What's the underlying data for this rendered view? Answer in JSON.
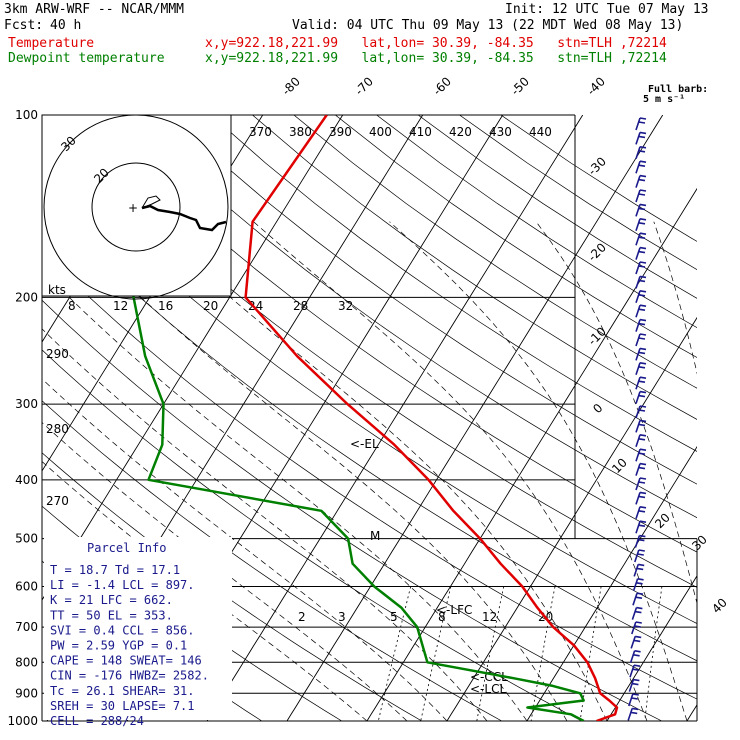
{
  "header": {
    "model": "3km ARW-WRF -- NCAR/MMM",
    "init": "Init: 12 UTC Tue 07 May 13",
    "fcst_label": "Fcst:",
    "fcst_value": "40 h",
    "valid": "Valid: 04 UTC Thu 09 May 13 (22 MDT Wed 08 May 13)",
    "temp_label": "Temperature",
    "dew_label": "Dewpoint temperature",
    "temp_loc": "x,y=922.18,221.99   lat,lon= 30.39, -84.35   stn=TLH ,72214",
    "dew_loc": "x,y=922.18,221.99   lat,lon= 30.39, -84.35   stn=TLH ,72214",
    "full_barb_line1": "Full barb:",
    "full_barb_line2": "5 m s⁻¹"
  },
  "colors": {
    "temperature": "#e00000",
    "dewpoint": "#008000",
    "navy": "#1a1a8c",
    "hodo": "#000000"
  },
  "chart_data": {
    "type": "line",
    "pressure_levels": [
      "100",
      "200",
      "300",
      "400",
      "500",
      "600",
      "700",
      "800",
      "900",
      "1000"
    ],
    "temperature_axis_labels": [
      "-80",
      "-70",
      "-60",
      "-50",
      "-40",
      "-30",
      "-20",
      "-10",
      "0",
      "10",
      "20",
      "30",
      "40"
    ],
    "theta_labels": [
      "370",
      "380",
      "390",
      "400",
      "410",
      "420",
      "430",
      "440"
    ],
    "mixing_ratio_labels_upper": [
      "8",
      "12",
      "16",
      "20",
      "24",
      "28",
      "32"
    ],
    "mixing_ratio_labels_lower": [
      "2",
      "3",
      "5",
      "8",
      "12",
      "20"
    ],
    "theta_left_labels": [
      "290",
      "280",
      "270"
    ],
    "hodo_ring_labels": [
      "30",
      "20"
    ],
    "hodo_units": "kts",
    "annotations": {
      "el": "<-EL",
      "lfc": "<-LFC",
      "ccl": "<-CCL",
      "lcl": "<-LCL",
      "m": "M"
    },
    "series": [
      {
        "name": "Temperature",
        "points": [
          [
            1000,
            18.7
          ],
          [
            975,
            20.5
          ],
          [
            950,
            20.2
          ],
          [
            925,
            18.7
          ],
          [
            900,
            17.0
          ],
          [
            850,
            15.2
          ],
          [
            800,
            13.0
          ],
          [
            750,
            10.0
          ],
          [
            700,
            6.0
          ],
          [
            650,
            2.5
          ],
          [
            600,
            -1.0
          ],
          [
            550,
            -5.5
          ],
          [
            500,
            -10.0
          ],
          [
            450,
            -15.5
          ],
          [
            400,
            -21.0
          ],
          [
            350,
            -28.0
          ],
          [
            300,
            -37.0
          ],
          [
            250,
            -47.0
          ],
          [
            200,
            -58.0
          ],
          [
            150,
            -63.0
          ],
          [
            100,
            -62.0
          ]
        ]
      },
      {
        "name": "Dewpoint temperature",
        "points": [
          [
            1000,
            17.1
          ],
          [
            975,
            15.0
          ],
          [
            950,
            9.0
          ],
          [
            925,
            15.5
          ],
          [
            900,
            14.5
          ],
          [
            875,
            10.5
          ],
          [
            850,
            5.0
          ],
          [
            800,
            -7.0
          ],
          [
            700,
            -11.0
          ],
          [
            650,
            -14.5
          ],
          [
            600,
            -19.5
          ],
          [
            550,
            -24.0
          ],
          [
            500,
            -26.5
          ],
          [
            450,
            -32.0
          ],
          [
            400,
            -56.0
          ],
          [
            350,
            -57.0
          ],
          [
            300,
            -60.0
          ],
          [
            250,
            -66.0
          ],
          [
            200,
            -72.0
          ],
          [
            150,
            -78.0
          ],
          [
            100,
            -82.0
          ]
        ]
      }
    ],
    "parcel": {
      "T": 18.7,
      "Td": 17.1,
      "EL_p": 353,
      "LFC_p": 662,
      "LCL_p": 897,
      "CCL_p": 856
    }
  },
  "parcel_info": {
    "title": "Parcel Info",
    "rows": [
      "T  =   18.7  Td =  17.1",
      "LI =   -1.4  LCL =  897.",
      "K  =     21  LFC =  662.",
      "TT =     50  EL  =  353.",
      "SVI =   0.4  CCL =  856.",
      "PW =   2.59  YGP =   0.1",
      "CAPE =  148  SWEAT=  146",
      "CIN =  -176  HWBZ= 2582.",
      "Tc =   26.1  SHEAR=  31.",
      "SREH =   30  LAPSE=  7.1",
      "CELL = 288/24"
    ]
  }
}
